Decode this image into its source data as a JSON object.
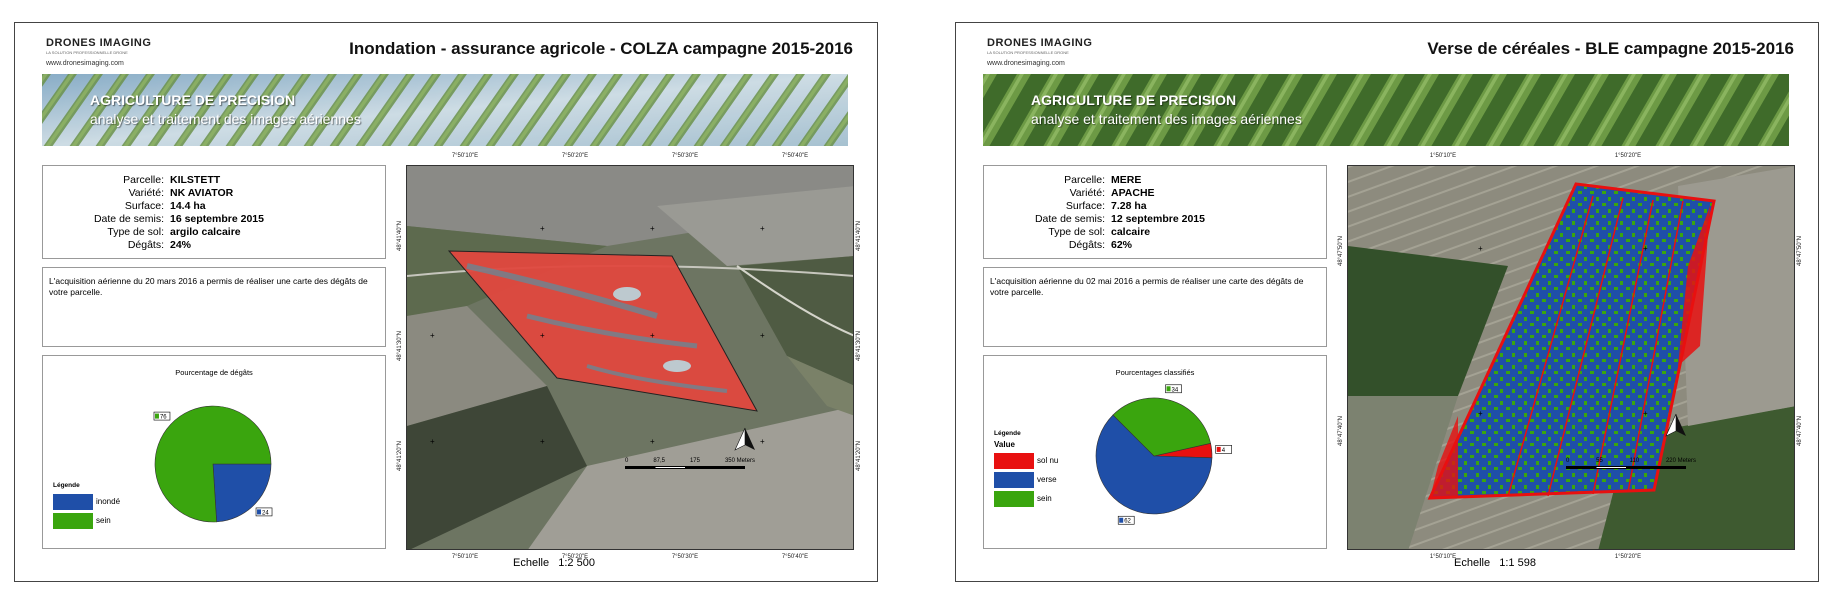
{
  "sheets": [
    {
      "brand": {
        "name": "DRONES IMAGING",
        "tagline": "LA SOLUTION PROFESSIONNELLE DRONE",
        "url": "www.dronesimaging.com"
      },
      "title": "Inondation - assurance agricole - COLZA campagne 2015-2016",
      "banner": {
        "line1": "AGRICULTURE DE PRECISION",
        "line2": "analyse et traitement des images aériennes"
      },
      "info": {
        "labels": [
          "Parcelle:",
          "Variété:",
          "Surface:",
          "Date de semis:",
          "Type de sol:",
          "Dégâts:"
        ],
        "values": [
          "KILSTETT",
          "NK AVIATOR",
          "14.4 ha",
          "16 septembre 2015",
          "argilo calcaire",
          "24%"
        ]
      },
      "description": "L'acquisition aérienne du 20 mars 2016 a permis de réaliser une carte des dégâts de votre parcelle.",
      "chart_data": {
        "type": "pie",
        "title": "Pourcentage de dégâts",
        "legend_title": "Légende",
        "legend_subtitle": "",
        "categories": [
          "inondé",
          "sein"
        ],
        "values": [
          24,
          76
        ],
        "colors": [
          "#1f4fa8",
          "#3aa50e"
        ],
        "labels": [
          "24",
          "76"
        ]
      },
      "map": {
        "coords_top": [
          "7°50'10\"E",
          "7°50'20\"E",
          "7°50'30\"E",
          "7°50'40\"E"
        ],
        "coords_side": [
          "48°41'40\"N",
          "48°41'30\"N",
          "48°41'20\"N"
        ],
        "scale_ticks": [
          "0",
          "87,5",
          "175",
          "350 Meters"
        ],
        "scale_label": "Echelle",
        "scale_value": "1:2 500",
        "zone_color": "#e0483e"
      }
    },
    {
      "brand": {
        "name": "DRONES IMAGING",
        "tagline": "LA SOLUTION PROFESSIONNELLE DRONE",
        "url": "www.dronesimaging.com"
      },
      "title": "Verse de céréales - BLE campagne 2015-2016",
      "banner": {
        "line1": "AGRICULTURE DE PRECISION",
        "line2": "analyse et traitement des images aériennes"
      },
      "info": {
        "labels": [
          "Parcelle:",
          "Variété:",
          "Surface:",
          "Date de semis:",
          "Type de sol:",
          "Dégâts:"
        ],
        "values": [
          "MERE",
          "APACHE",
          "7.28 ha",
          "12 septembre 2015",
          "calcaire",
          "62%"
        ]
      },
      "description": "L'acquisition aérienne du 02 mai 2016 a permis de réaliser une carte des dégâts de votre parcelle.",
      "chart_data": {
        "type": "pie",
        "title": "Pourcentages classifiés",
        "legend_title": "Légende",
        "legend_subtitle": "Value",
        "categories": [
          "sol nu",
          "verse",
          "sein"
        ],
        "values": [
          4,
          62,
          34
        ],
        "colors": [
          "#e81010",
          "#1f4fa8",
          "#3aa50e"
        ],
        "labels": [
          "4",
          "62",
          "34"
        ]
      },
      "map": {
        "coords_top": [
          "1°50'10\"E",
          "1°50'20\"E"
        ],
        "coords_side": [
          "48°47'50\"N",
          "48°47'40\"N"
        ],
        "scale_ticks": [
          "0",
          "55",
          "110",
          "220 Meters"
        ],
        "scale_label": "Echelle",
        "scale_value": "1:1 598",
        "zone_color": "#1f4fa8"
      }
    }
  ]
}
